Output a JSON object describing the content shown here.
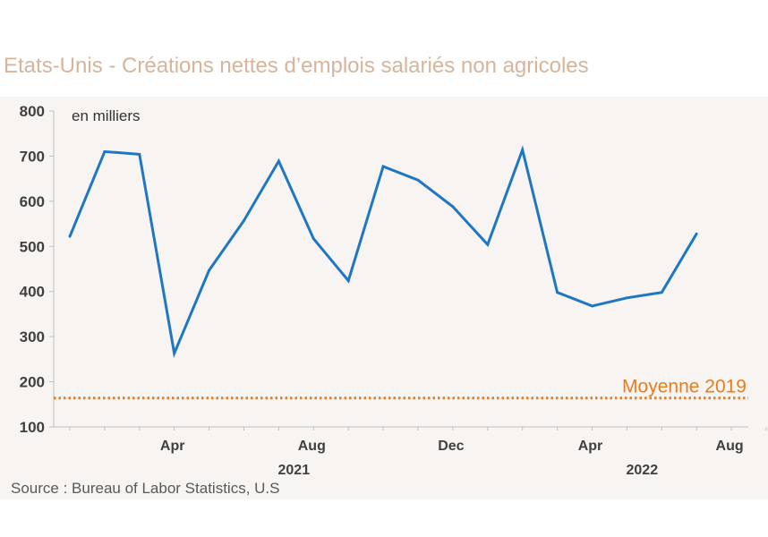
{
  "title": "Etats-Unis - Créations nettes d’emplois salariés non agricoles",
  "source": "Source : Bureau of Labor Statistics, U.S",
  "chart_data": {
    "type": "line",
    "unit_label": "en milliers",
    "ylim": [
      100,
      800
    ],
    "yticks": [
      100,
      200,
      300,
      400,
      500,
      600,
      700,
      800
    ],
    "x_tick_labels": [
      {
        "label": "Apr",
        "index": 3
      },
      {
        "label": "Aug",
        "index": 7
      },
      {
        "label": "Dec",
        "index": 11
      },
      {
        "label": "Apr",
        "index": 15
      },
      {
        "label": "Aug",
        "index": 19
      }
    ],
    "year_labels": [
      {
        "label": "2021",
        "index": 7
      },
      {
        "label": "2022",
        "index": 17
      }
    ],
    "series": [
      {
        "color": "#1f77c4",
        "x": [
          "2021-01",
          "2021-02",
          "2021-03",
          "2021-04",
          "2021-05",
          "2021-06",
          "2021-07",
          "2021-08",
          "2021-09",
          "2021-10",
          "2021-11",
          "2021-12",
          "2022-01",
          "2022-02",
          "2022-03",
          "2022-04",
          "2022-05",
          "2022-06",
          "2022-07"
        ],
        "values": [
          522,
          710,
          704,
          263,
          447,
          557,
          689,
          517,
          424,
          677,
          647,
          588,
          504,
          714,
          398,
          368,
          386,
          398,
          528
        ]
      }
    ],
    "reference_line": {
      "label": "Moyenne 2019",
      "value": 164,
      "color": "#e87d1e"
    },
    "grid": false
  }
}
